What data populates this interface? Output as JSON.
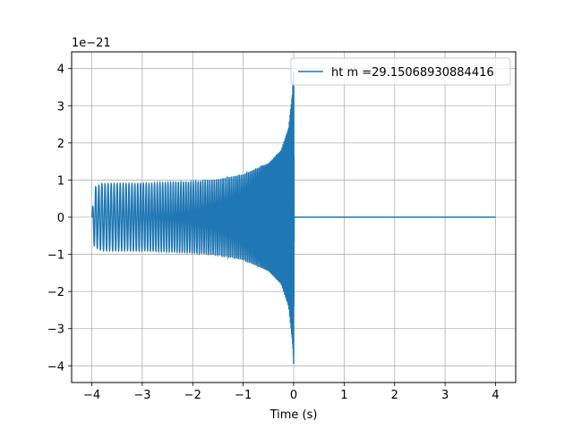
{
  "chart_data": {
    "type": "line",
    "title": "",
    "xlabel": "Time (s)",
    "ylabel": "",
    "offset_label": "1e−21",
    "xlim": [
      -4.4,
      4.4
    ],
    "ylim": [
      -4.45,
      4.45
    ],
    "x_ticks": [
      -4,
      -3,
      -2,
      -1,
      0,
      1,
      2,
      3,
      4
    ],
    "x_tick_labels": [
      "−4",
      "−3",
      "−2",
      "−1",
      "0",
      "1",
      "2",
      "3",
      "4"
    ],
    "y_ticks": [
      -4,
      -3,
      -2,
      -1,
      0,
      1,
      2,
      3,
      4
    ],
    "y_tick_labels": [
      "−4",
      "−3",
      "−2",
      "−1",
      "0",
      "1",
      "2",
      "3",
      "4"
    ],
    "grid": true,
    "legend_position": "upper right",
    "series": [
      {
        "name": "ht m =29.15068930884416",
        "color": "#1f77b4",
        "description_points": {
          "x_range": [
            -4,
            4
          ],
          "envelope_x": [
            -4.0,
            -3.95,
            -3.8,
            -3.0,
            -2.0,
            -1.5,
            -1.0,
            -0.5,
            -0.25,
            -0.1,
            -0.02,
            0.0,
            0.01,
            4.0
          ],
          "envelope_upper": [
            0.0,
            0.8,
            0.9,
            0.9,
            0.95,
            1.02,
            1.15,
            1.45,
            1.8,
            2.4,
            3.4,
            4.1,
            0.0,
            0.0
          ],
          "envelope_lower": [
            0.0,
            -0.8,
            -0.9,
            -0.9,
            -0.95,
            -1.02,
            -1.15,
            -1.45,
            -1.8,
            -2.4,
            -3.4,
            -4.1,
            0.0,
            0.0
          ]
        }
      }
    ]
  }
}
